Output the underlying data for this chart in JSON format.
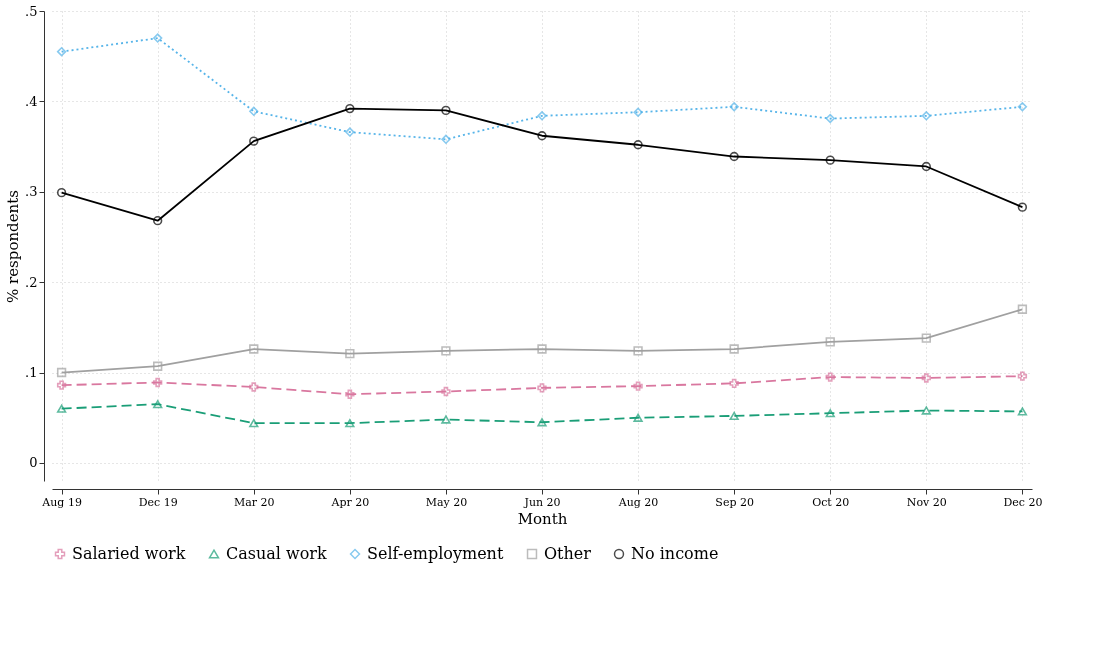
{
  "chart_data": {
    "type": "line",
    "xlabel": "Month",
    "ylabel": "% respondents",
    "categories": [
      "Aug 19",
      "Dec 19",
      "Mar 20",
      "Apr 20",
      "May 20",
      "Jun 20",
      "Aug 20",
      "Sep 20",
      "Oct 20",
      "Nov 20",
      "Dec 20"
    ],
    "ylim": [
      -0.02,
      0.5
    ],
    "yticks": [
      {
        "value": 0,
        "label": "0"
      },
      {
        "value": 0.1,
        "label": ".1"
      },
      {
        "value": 0.2,
        "label": ".2"
      },
      {
        "value": 0.3,
        "label": ".3"
      },
      {
        "value": 0.4,
        "label": ".4"
      },
      {
        "value": 0.5,
        "label": ".5"
      }
    ],
    "grid": true,
    "legend": "bottom",
    "series": [
      {
        "name": "Salaried work",
        "color": "#d9779f",
        "marker": "cross",
        "line_style": "dashed",
        "values": [
          0.086,
          0.089,
          0.084,
          0.076,
          0.079,
          0.083,
          0.085,
          0.088,
          0.095,
          0.094,
          0.096
        ]
      },
      {
        "name": "Casual work",
        "color": "#1a9e77",
        "marker": "triangle",
        "line_style": "dashed",
        "values": [
          0.06,
          0.065,
          0.044,
          0.044,
          0.048,
          0.045,
          0.05,
          0.052,
          0.055,
          0.058,
          0.057
        ]
      },
      {
        "name": "Self-employment",
        "color": "#56b4e9",
        "marker": "diamond",
        "line_style": "dotted",
        "values": [
          0.455,
          0.47,
          0.389,
          0.366,
          0.358,
          0.384,
          0.388,
          0.394,
          0.381,
          0.384,
          0.394
        ]
      },
      {
        "name": "Other",
        "color": "#a0a0a0",
        "marker": "square",
        "line_style": "solid",
        "values": [
          0.1,
          0.107,
          0.126,
          0.121,
          0.124,
          0.126,
          0.124,
          0.126,
          0.134,
          0.138,
          0.17
        ]
      },
      {
        "name": "No income",
        "color": "#000000",
        "marker": "circle",
        "line_style": "solid",
        "values": [
          0.299,
          0.268,
          0.356,
          0.392,
          0.39,
          0.362,
          0.352,
          0.339,
          0.335,
          0.328,
          0.283
        ]
      }
    ]
  }
}
